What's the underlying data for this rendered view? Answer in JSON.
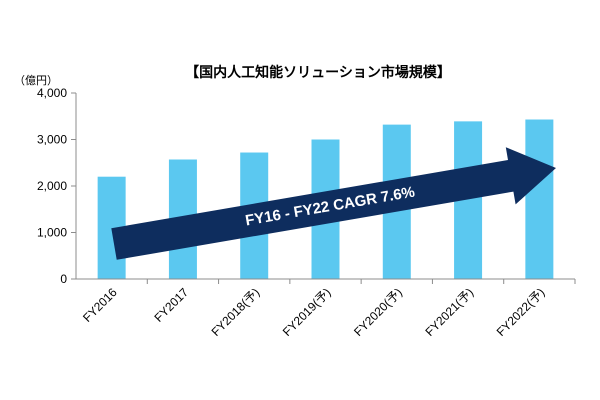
{
  "chart_data": {
    "type": "bar",
    "title": "【国内人工知能ソリューション市場規模】",
    "unit_label": "（億円）",
    "xlabel": "",
    "ylabel": "",
    "categories": [
      "FY2016",
      "FY2017",
      "FY2018(予)",
      "FY2019(予)",
      "FY2020(予)",
      "FY2021(予)",
      "FY2022(予)"
    ],
    "values": [
      2200,
      2570,
      2720,
      3000,
      3320,
      3390,
      3430
    ],
    "ylim": [
      0,
      4000
    ],
    "yticks": [
      0,
      1000,
      2000,
      3000,
      4000
    ],
    "ytick_labels": [
      "0",
      "1,000",
      "2,000",
      "3,000",
      "4,000"
    ],
    "bar_color": "#5BC8F0",
    "grid": false,
    "annotation": {
      "text": "FY16 - FY22 CAGR 7.6%",
      "color": "#0E2D5E"
    }
  }
}
